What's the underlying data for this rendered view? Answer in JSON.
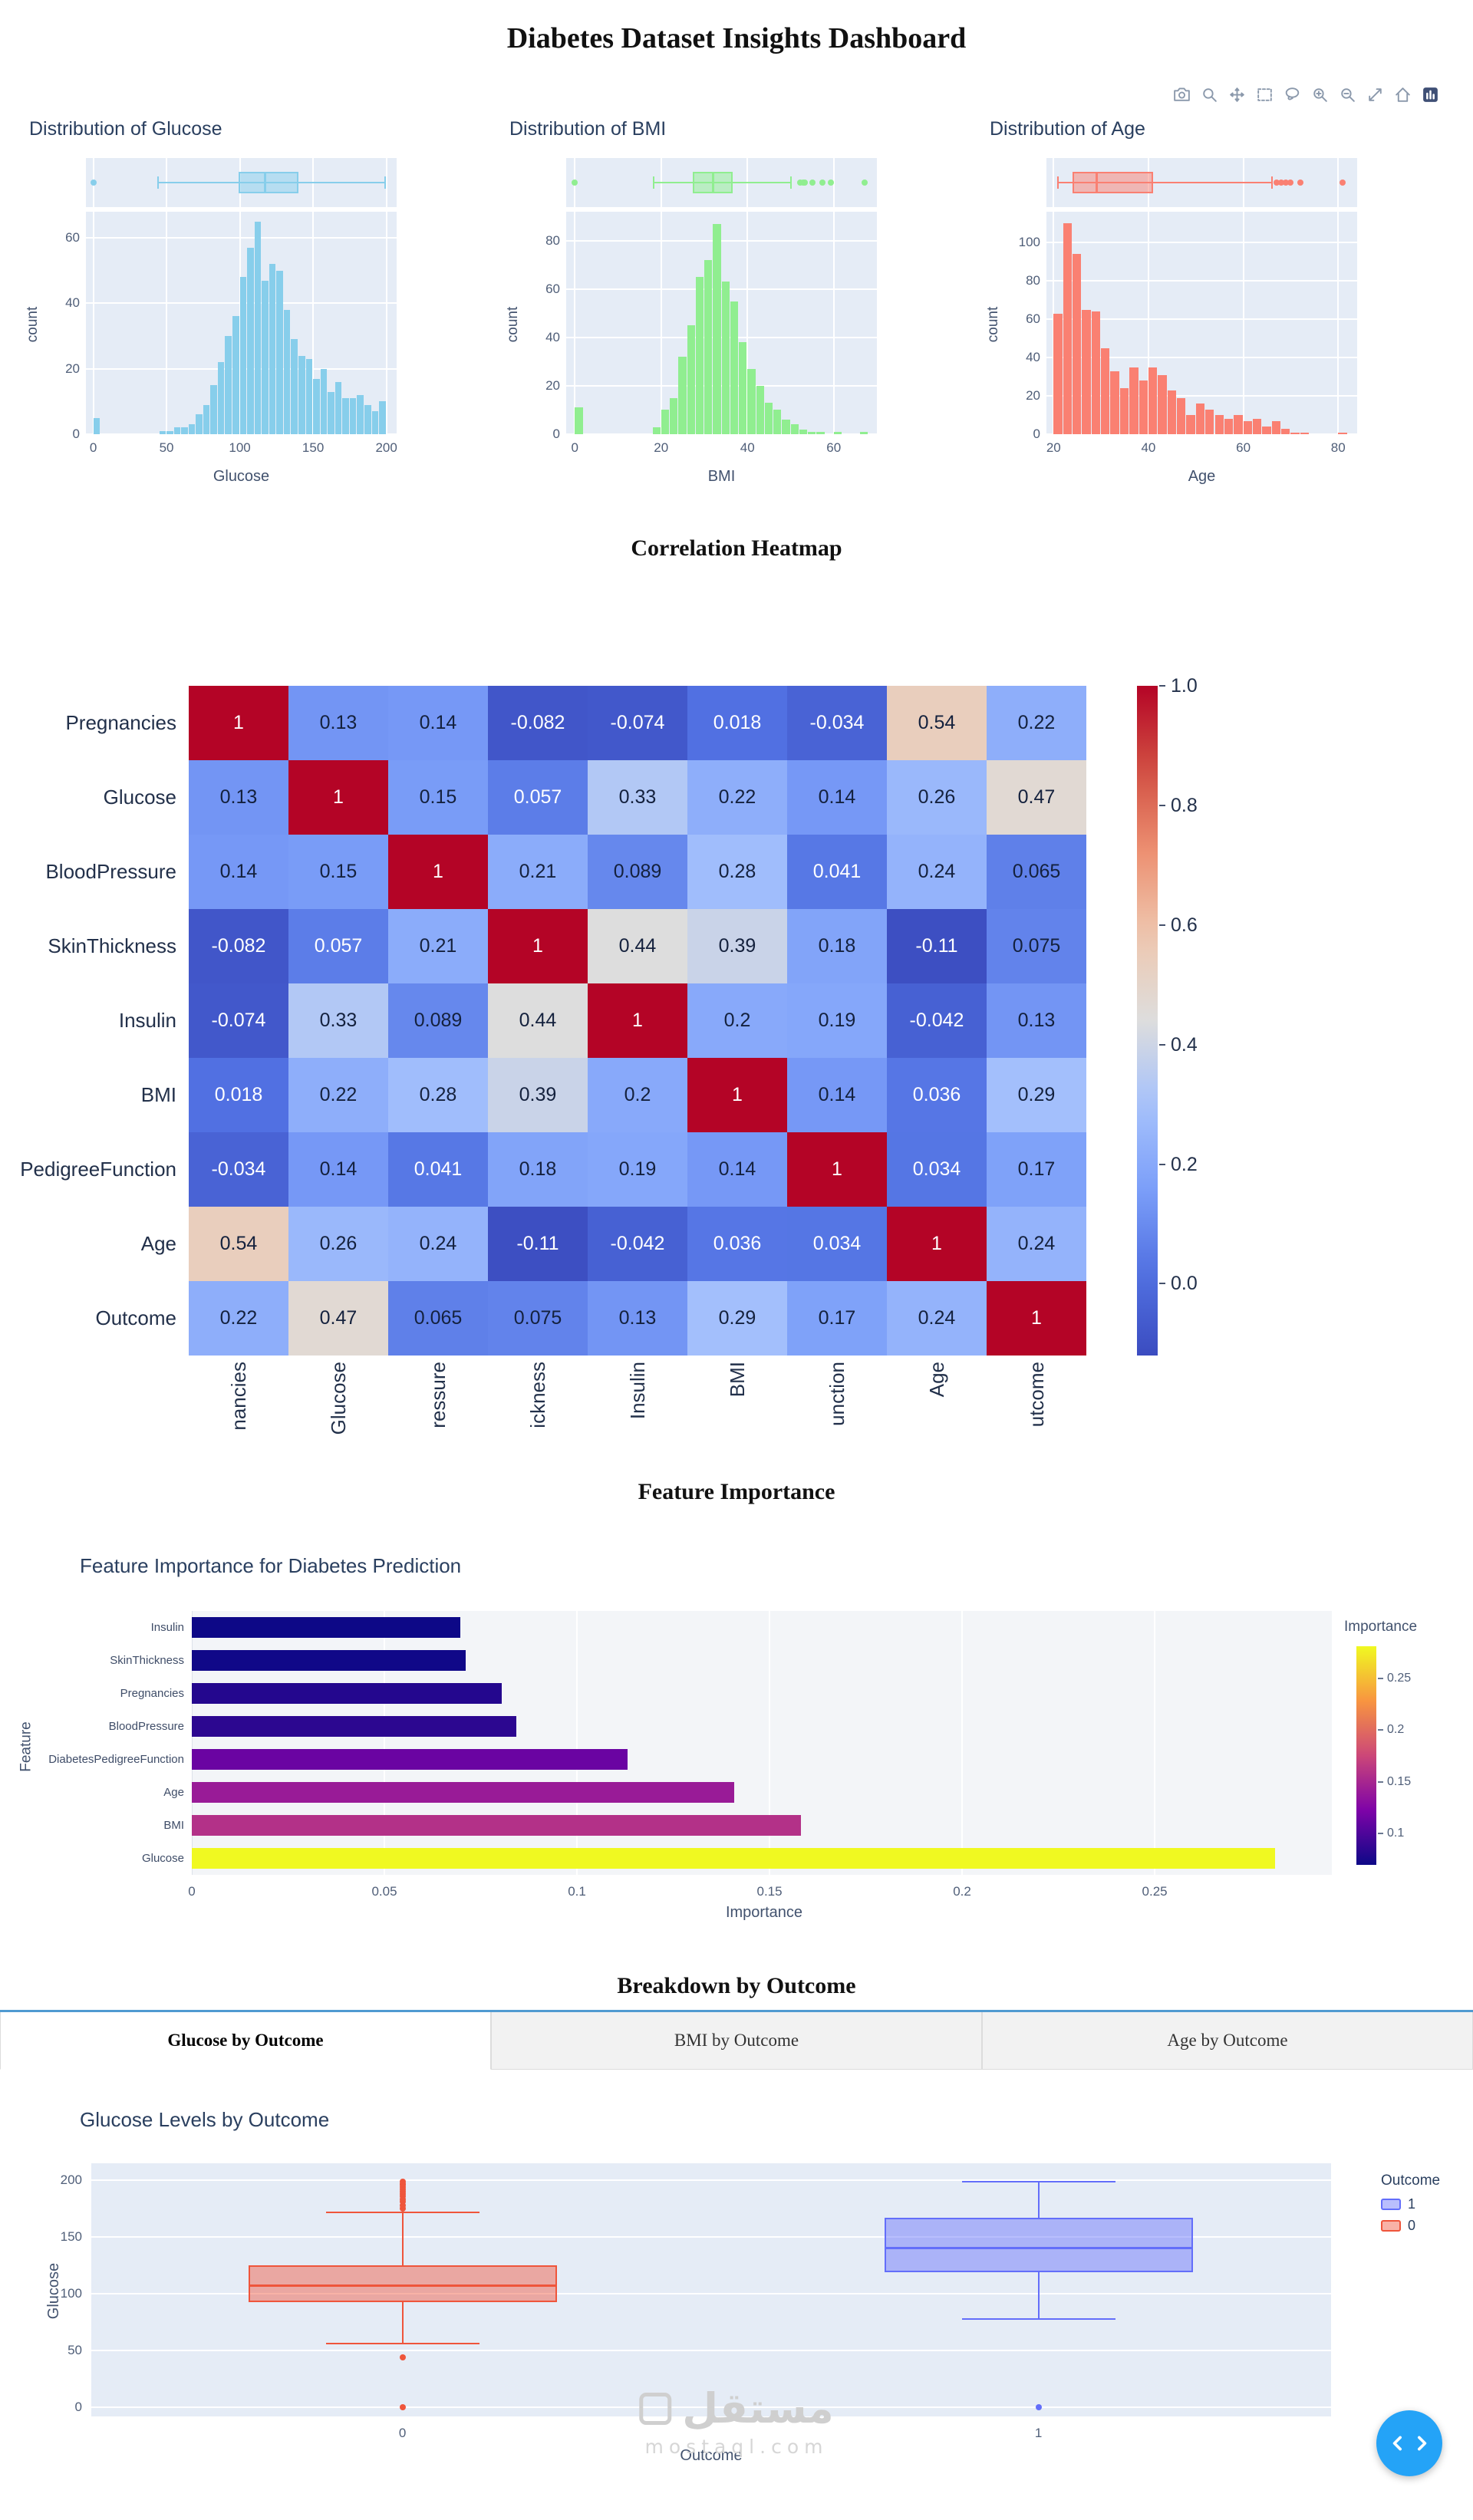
{
  "page": {
    "title": "Diabetes Dataset Insights Dashboard",
    "headings": {
      "correlation": "Correlation Heatmap",
      "importance": "Feature Importance",
      "breakdown": "Breakdown by Outcome"
    },
    "watermark": {
      "brand_arabic": "مستقل",
      "brand_domain": "mostaql.com"
    }
  },
  "modebar": {
    "icons": [
      "camera-icon",
      "zoom-icon",
      "pan-icon",
      "box-select-icon",
      "lasso-select-icon",
      "zoom-in-icon",
      "zoom-out-icon",
      "autoscale-icon",
      "reset-axes-icon",
      "plotly-logo-icon"
    ]
  },
  "tabs": [
    {
      "label": "Glucose by Outcome",
      "active": true
    },
    {
      "label": "BMI by Outcome",
      "active": false
    },
    {
      "label": "Age by Outcome",
      "active": false
    }
  ],
  "chart_data": [
    {
      "id": "glucose-hist",
      "type": "histogram",
      "title": "Distribution of Glucose",
      "xlabel": "Glucose",
      "ylabel": "count",
      "color": "#87CEEB",
      "xlim": [
        -5,
        207
      ],
      "ylim": [
        0,
        68
      ],
      "xticks": [
        0,
        50,
        100,
        150,
        200
      ],
      "yticks": [
        0,
        20,
        40,
        60
      ],
      "bin_start": 0,
      "bin_width": 5,
      "counts": [
        5,
        0,
        0,
        0,
        0,
        0,
        0,
        0,
        0,
        1,
        1,
        2,
        2,
        3,
        6,
        9,
        15,
        22,
        30,
        36,
        48,
        57,
        65,
        47,
        52,
        50,
        38,
        29,
        24,
        23,
        17,
        20,
        13,
        16,
        11,
        11,
        12,
        9,
        7,
        10
      ],
      "box": {
        "q1": 99,
        "median": 117,
        "q3": 140.25,
        "whisker_low": 44,
        "whisker_high": 199,
        "outliers": [
          0
        ]
      }
    },
    {
      "id": "bmi-hist",
      "type": "histogram",
      "title": "Distribution of BMI",
      "xlabel": "BMI",
      "ylabel": "count",
      "color": "#90EE90",
      "xlim": [
        -2,
        70
      ],
      "ylim": [
        0,
        92
      ],
      "xticks": [
        0,
        20,
        40,
        60
      ],
      "yticks": [
        0,
        20,
        40,
        60,
        80
      ],
      "bin_start": 0,
      "bin_width": 2,
      "counts": [
        11,
        0,
        0,
        0,
        0,
        0,
        0,
        0,
        0,
        3,
        10,
        15,
        32,
        45,
        65,
        72,
        87,
        63,
        55,
        38,
        27,
        20,
        13,
        10,
        6,
        4,
        2,
        1,
        1,
        0,
        1,
        0,
        0,
        1
      ],
      "box": {
        "q1": 27.3,
        "median": 32,
        "q3": 36.6,
        "whisker_low": 18.2,
        "whisker_high": 50,
        "outliers": [
          0,
          52.3,
          52.9,
          53.2,
          55,
          57.3,
          59.4,
          67.1
        ]
      }
    },
    {
      "id": "age-hist",
      "type": "histogram",
      "title": "Distribution of Age",
      "xlabel": "Age",
      "ylabel": "count",
      "color": "#FA8072",
      "xlim": [
        18.5,
        84
      ],
      "ylim": [
        0,
        116
      ],
      "xticks": [
        20,
        40,
        60,
        80
      ],
      "yticks": [
        0,
        20,
        40,
        60,
        80,
        100
      ],
      "bin_start": 20,
      "bin_width": 2,
      "counts": [
        63,
        110,
        94,
        65,
        64,
        45,
        33,
        24,
        35,
        28,
        35,
        31,
        23,
        19,
        10,
        16,
        13,
        10,
        8,
        10,
        7,
        8,
        4,
        7,
        3,
        1,
        1,
        0,
        0,
        0,
        1
      ],
      "box": {
        "q1": 24,
        "median": 29,
        "q3": 41,
        "whisker_low": 21,
        "whisker_high": 66,
        "outliers": [
          67,
          68,
          69,
          70,
          72,
          81
        ]
      }
    },
    {
      "id": "corr-heatmap",
      "type": "heatmap",
      "y_labels": [
        "Pregnancies",
        "Glucose",
        "BloodPressure",
        "SkinThickness",
        "Insulin",
        "BMI",
        "PedigreeFunction",
        "Age",
        "Outcome"
      ],
      "x_labels": [
        "nancies",
        "Glucose",
        "ressure",
        "ickness",
        "Insulin",
        "BMI",
        "unction",
        "Age",
        "utcome"
      ],
      "matrix": [
        [
          1,
          0.13,
          0.14,
          -0.082,
          -0.074,
          0.018,
          -0.034,
          0.54,
          0.22
        ],
        [
          0.13,
          1,
          0.15,
          0.057,
          0.33,
          0.22,
          0.14,
          0.26,
          0.47
        ],
        [
          0.14,
          0.15,
          1,
          0.21,
          0.089,
          0.28,
          0.041,
          0.24,
          0.065
        ],
        [
          -0.082,
          0.057,
          0.21,
          1,
          0.44,
          0.39,
          0.18,
          -0.11,
          0.075
        ],
        [
          -0.074,
          0.33,
          0.089,
          0.44,
          1,
          0.2,
          0.19,
          -0.042,
          0.13
        ],
        [
          0.018,
          0.22,
          0.28,
          0.39,
          0.2,
          1,
          0.14,
          0.036,
          0.29
        ],
        [
          -0.034,
          0.14,
          0.041,
          0.18,
          0.19,
          0.14,
          1,
          0.034,
          0.17
        ],
        [
          0.54,
          0.26,
          0.24,
          -0.11,
          -0.042,
          0.036,
          0.034,
          1,
          0.24
        ],
        [
          0.22,
          0.47,
          0.065,
          0.075,
          0.13,
          0.29,
          0.17,
          0.24,
          1
        ]
      ],
      "colorbar_ticks": [
        "1.0",
        "0.8",
        "0.6",
        "0.4",
        "0.2",
        "0.0"
      ],
      "vmin": -0.12,
      "vmax": 1.0,
      "colormap": "coolwarm"
    },
    {
      "id": "feature-importance",
      "type": "bar",
      "orientation": "h",
      "title": "Feature Importance for Diabetes Prediction",
      "xlabel": "Importance",
      "ylabel": "Feature",
      "categories": [
        "Insulin",
        "SkinThickness",
        "Pregnancies",
        "BloodPressure",
        "DiabetesPedigreeFunction",
        "Age",
        "BMI",
        "Glucose"
      ],
      "values": [
        0.0697,
        0.0712,
        0.0804,
        0.0843,
        0.1132,
        0.1409,
        0.1582,
        0.2812
      ],
      "xlim": [
        0,
        0.296
      ],
      "xticks": [
        0,
        0.05,
        0.1,
        0.15,
        0.2,
        0.25
      ],
      "colorbar": {
        "title": "Importance",
        "ticks": [
          0.25,
          0.2,
          0.15,
          0.1
        ]
      },
      "colormap": "plasma",
      "legend_position": "right"
    },
    {
      "id": "glucose-by-outcome",
      "type": "box",
      "title": "Glucose Levels by Outcome",
      "xlabel": "Outcome",
      "ylabel": "Glucose",
      "categories": [
        "0",
        "1"
      ],
      "yticks": [
        0,
        50,
        100,
        150,
        200
      ],
      "ylim": [
        -8,
        215
      ],
      "legend": {
        "title": "Outcome",
        "items": [
          {
            "label": "1",
            "color": "#636EFA"
          },
          {
            "label": "0",
            "color": "#EF553B"
          }
        ]
      },
      "groups": [
        {
          "label": "0",
          "color": "#EF553B",
          "q1": 93,
          "median": 107,
          "q3": 125,
          "whisker_low": 56,
          "whisker_high": 172,
          "outliers": [
            0,
            44,
            175,
            178,
            181,
            183,
            186,
            188,
            190,
            192,
            194,
            196,
            197,
            199
          ]
        },
        {
          "label": "1",
          "color": "#636EFA",
          "q1": 119,
          "median": 140,
          "q3": 167,
          "whisker_low": 78,
          "whisker_high": 199,
          "outliers": [
            0
          ]
        }
      ]
    }
  ]
}
